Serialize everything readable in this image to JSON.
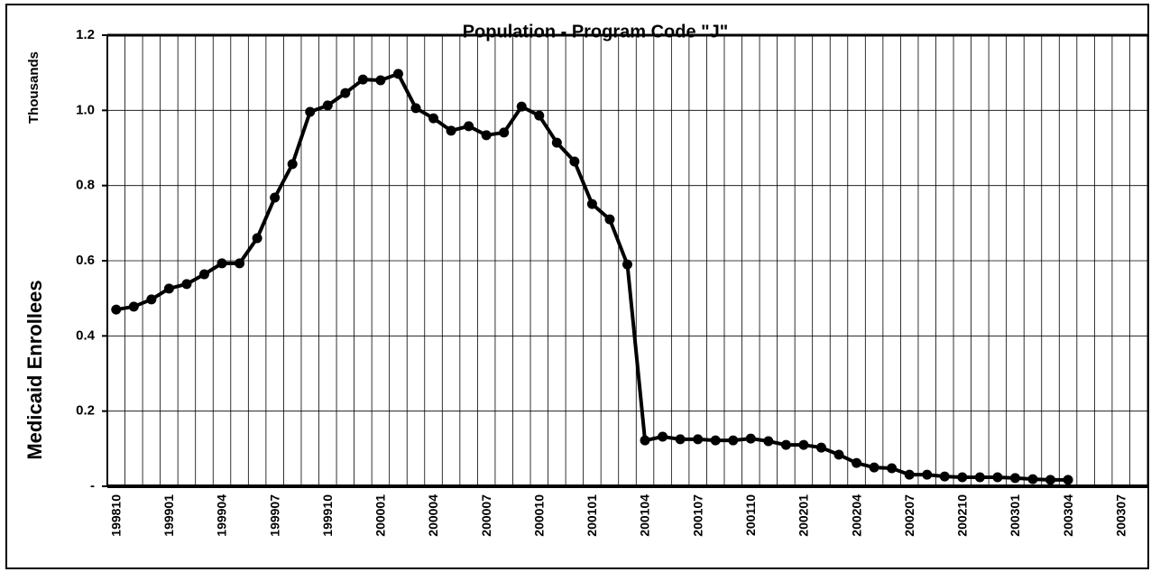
{
  "chart_data": {
    "type": "line",
    "title": "Population - Program Code \"J\"",
    "y_label": "Medicaid Enrollees",
    "y_unit_label": "Thousands",
    "categories": [
      "199810",
      null,
      null,
      "199901",
      null,
      null,
      "199904",
      null,
      null,
      "199907",
      null,
      null,
      "199910",
      null,
      null,
      "200001",
      null,
      null,
      "200004",
      null,
      null,
      "200007",
      null,
      null,
      "200010",
      null,
      null,
      "200101",
      null,
      null,
      "200104",
      null,
      null,
      "200107",
      null,
      null,
      "200110",
      null,
      null,
      "200201",
      null,
      null,
      "200204",
      null,
      null,
      "200207",
      null,
      null,
      "200210",
      null,
      null,
      "200301",
      null,
      null,
      "200304",
      null,
      null,
      "200307",
      null
    ],
    "series": [
      {
        "name": "Medicaid Enrollees",
        "color": "#000000",
        "values": [
          0.47,
          0.478,
          0.497,
          0.526,
          0.538,
          0.564,
          0.593,
          0.593,
          0.66,
          0.768,
          0.857,
          0.996,
          1.013,
          1.046,
          1.082,
          1.08,
          1.097,
          1.006,
          0.979,
          0.946,
          0.958,
          0.934,
          0.941,
          1.01,
          0.986,
          0.914,
          0.864,
          0.751,
          0.71,
          0.59,
          0.122,
          0.132,
          0.125,
          0.125,
          0.122,
          0.122,
          0.127,
          0.12,
          0.11,
          0.11,
          0.103,
          0.084,
          0.062,
          0.05,
          0.048,
          0.031,
          0.031,
          0.026,
          0.024,
          0.024,
          0.024,
          0.022,
          0.019,
          0.017,
          0.017,
          null,
          null,
          null,
          null
        ]
      }
    ],
    "ylim": [
      0,
      1.2
    ],
    "yticks": [
      {
        "value": 0,
        "label": "-"
      },
      0.2,
      0.4,
      0.6,
      0.8,
      {
        "value": 1.0,
        "label": "1.0"
      },
      1.2
    ],
    "grid": true
  }
}
